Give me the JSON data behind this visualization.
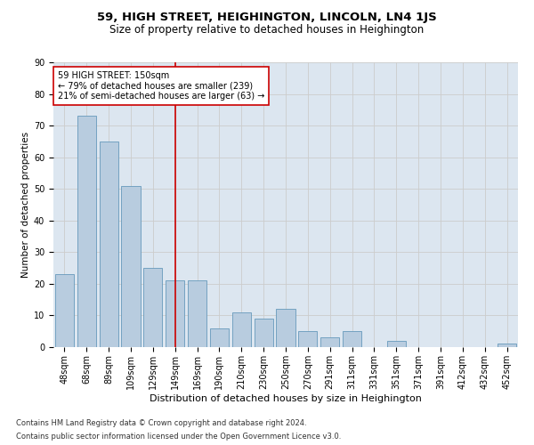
{
  "title1": "59, HIGH STREET, HEIGHINGTON, LINCOLN, LN4 1JS",
  "title2": "Size of property relative to detached houses in Heighington",
  "xlabel": "Distribution of detached houses by size in Heighington",
  "ylabel": "Number of detached properties",
  "categories": [
    "48sqm",
    "68sqm",
    "89sqm",
    "109sqm",
    "129sqm",
    "149sqm",
    "169sqm",
    "190sqm",
    "210sqm",
    "230sqm",
    "250sqm",
    "270sqm",
    "291sqm",
    "311sqm",
    "331sqm",
    "351sqm",
    "371sqm",
    "391sqm",
    "412sqm",
    "432sqm",
    "452sqm"
  ],
  "values": [
    23,
    73,
    65,
    51,
    25,
    21,
    21,
    6,
    11,
    9,
    12,
    5,
    3,
    5,
    0,
    2,
    0,
    0,
    0,
    0,
    1
  ],
  "bar_color": "#b8ccdf",
  "bar_edge_color": "#6699bb",
  "highlight_line_index": 5,
  "highlight_label_line1": "59 HIGH STREET: 150sqm",
  "highlight_label_line2": "← 79% of detached houses are smaller (239)",
  "highlight_label_line3": "21% of semi-detached houses are larger (63) →",
  "box_color": "white",
  "box_edge_color": "#cc0000",
  "line_color": "#cc0000",
  "ylim": [
    0,
    90
  ],
  "yticks": [
    0,
    10,
    20,
    30,
    40,
    50,
    60,
    70,
    80,
    90
  ],
  "grid_color": "#cccccc",
  "bg_color": "#dce6f0",
  "footnote1": "Contains HM Land Registry data © Crown copyright and database right 2024.",
  "footnote2": "Contains public sector information licensed under the Open Government Licence v3.0.",
  "title1_fontsize": 9.5,
  "title2_fontsize": 8.5,
  "xlabel_fontsize": 8,
  "ylabel_fontsize": 7.5,
  "tick_fontsize": 7,
  "annotation_fontsize": 7,
  "footnote_fontsize": 6
}
